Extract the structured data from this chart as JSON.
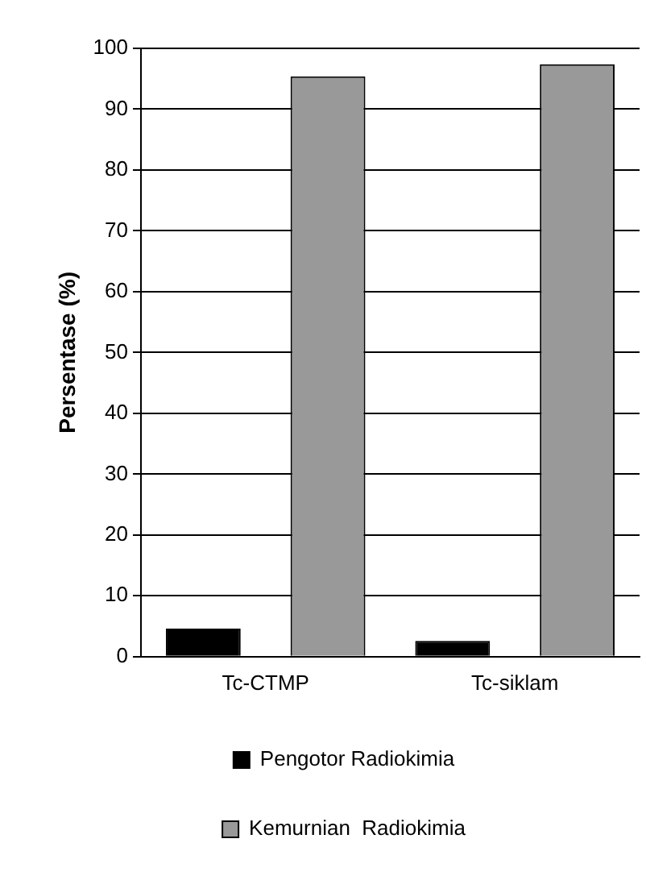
{
  "chart_data": {
    "type": "bar",
    "ylabel": "Persentase (%)",
    "categories": [
      "Tc-CTMP",
      "Tc-siklam"
    ],
    "series": [
      {
        "name": "Pengotor Radiokimia",
        "color": "#000000",
        "values": [
          4.6,
          2.6
        ]
      },
      {
        "name": "Kemurnian  Radiokimia",
        "color": "#999999",
        "values": [
          95.4,
          97.4
        ]
      }
    ],
    "ylim": [
      0,
      100
    ],
    "yticks": [
      0,
      10,
      20,
      30,
      40,
      50,
      60,
      70,
      80,
      90,
      100
    ],
    "grid": "y",
    "legend": "bottom"
  }
}
